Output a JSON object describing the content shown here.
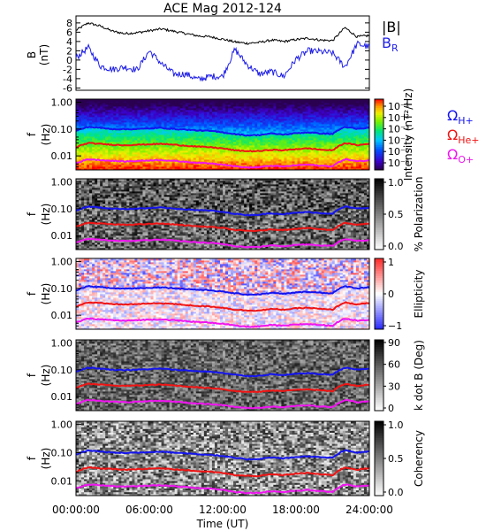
{
  "title": "ACE Mag 2012-124",
  "x_axis": {
    "label": "Time (UT)",
    "ticks": [
      "00:00:00",
      "06:00:00",
      "12:00:00",
      "18:00:00",
      "24:00:00"
    ]
  },
  "labels": {
    "panel_ylabel_f": "f",
    "panel_ylabel_hz": "(Hz)",
    "b_ylabel": "B",
    "b_unit": "(nT)",
    "legend_b": "|B|",
    "legend_br_main": "B",
    "legend_br_sub": "R",
    "omega": "Ω",
    "h_plus": "H+",
    "he_plus": "He+",
    "o_plus": "O+"
  },
  "colors": {
    "B_total": "#000000",
    "B_R": "#1e1ee6",
    "omega_H": "#1414f0",
    "omega_He": "#f01414",
    "omega_O": "#f014f0"
  },
  "chart_data": [
    {
      "type": "line",
      "ylabel": "B (nT)",
      "ylim": [
        -6.5,
        9.5
      ],
      "yticks": [
        "-6",
        "-4",
        "-2",
        "0",
        "2",
        "4",
        "6",
        "8"
      ],
      "x_unit": "hours UT",
      "xlim": [
        0,
        24
      ],
      "series": [
        {
          "name": "|B|",
          "x": [
            0,
            1,
            2,
            3,
            4,
            5,
            6,
            7,
            8,
            9,
            10,
            11,
            12,
            13,
            14,
            15,
            16,
            17,
            18,
            19,
            20,
            21,
            22,
            23,
            24
          ],
          "values": [
            6.4,
            8.0,
            7.3,
            6.2,
            5.7,
            5.9,
            6.3,
            6.7,
            6.2,
            5.7,
            5.2,
            5.0,
            4.5,
            3.9,
            3.6,
            3.8,
            4.3,
            4.0,
            4.4,
            4.7,
            4.3,
            4.2,
            7.0,
            5.0,
            5.3
          ]
        },
        {
          "name": "B_R",
          "x": [
            0,
            1,
            2,
            3,
            4,
            5,
            6,
            7,
            8,
            9,
            10,
            11,
            12,
            13,
            14,
            15,
            16,
            17,
            18,
            19,
            20,
            21,
            22,
            23,
            24
          ],
          "values": [
            0.5,
            2.7,
            -1.3,
            -2.0,
            -1.5,
            -2.1,
            2.0,
            -0.8,
            -3.0,
            -3.0,
            -4.2,
            -3.5,
            -3.5,
            2.3,
            -1.0,
            -3.0,
            -2.5,
            -3.5,
            0.2,
            2.0,
            1.8,
            1.5,
            -1.5,
            3.5,
            2.8
          ]
        }
      ]
    },
    {
      "type": "heatmap",
      "ylabel": "f (Hz)",
      "y_scale": "log",
      "ylim": [
        0.003,
        1.3
      ],
      "yticks": [
        "1.00",
        "0.10",
        "0.01"
      ],
      "colorbar_label": "Intensity (nT²/Hz)",
      "colorbar_ticks": [
        "10⁻¹",
        "10⁻²",
        "10⁻³",
        "10⁻⁴",
        "10⁻⁵",
        "10⁻⁶"
      ],
      "colorbar_range": [
        -6.5,
        -0.5
      ]
    },
    {
      "type": "heatmap",
      "ylabel": "f (Hz)",
      "y_scale": "log",
      "colorbar_label": "% Polarization",
      "colorbar_ticks": [
        "1.0",
        "0.5",
        "0.0"
      ],
      "colorbar_range": [
        0,
        1
      ]
    },
    {
      "type": "heatmap",
      "ylabel": "f (Hz)",
      "y_scale": "log",
      "colorbar_label": "Ellipticity",
      "colorbar_ticks": [
        "1",
        "0",
        "−1"
      ],
      "colorbar_range": [
        -1,
        1
      ]
    },
    {
      "type": "heatmap",
      "ylabel": "f (Hz)",
      "y_scale": "log",
      "colorbar_label": "k dot B (Deg)",
      "colorbar_ticks": [
        "90",
        "60",
        "30",
        "0"
      ],
      "colorbar_range": [
        0,
        90
      ]
    },
    {
      "type": "heatmap",
      "ylabel": "f (Hz)",
      "y_scale": "log",
      "colorbar_label": "Coherency",
      "colorbar_ticks": [
        "1.0",
        "0.5",
        "0.0"
      ],
      "colorbar_range": [
        0,
        1
      ]
    }
  ],
  "gyrofrequency_lines": {
    "x": [
      0,
      1,
      2,
      3,
      4,
      5,
      6,
      7,
      8,
      9,
      10,
      11,
      12,
      13,
      14,
      15,
      16,
      17,
      18,
      19,
      20,
      21,
      22,
      23,
      24
    ],
    "omega_H": [
      0.085,
      0.12,
      0.11,
      0.1,
      0.098,
      0.1,
      0.105,
      0.11,
      0.1,
      0.095,
      0.088,
      0.085,
      0.075,
      0.065,
      0.058,
      0.06,
      0.068,
      0.062,
      0.07,
      0.075,
      0.068,
      0.066,
      0.12,
      0.1,
      0.11
    ],
    "omega_He": [
      0.021,
      0.03,
      0.028,
      0.026,
      0.025,
      0.026,
      0.027,
      0.028,
      0.026,
      0.024,
      0.022,
      0.021,
      0.019,
      0.016,
      0.015,
      0.015,
      0.017,
      0.016,
      0.018,
      0.019,
      0.017,
      0.016,
      0.03,
      0.025,
      0.028
    ],
    "omega_O": [
      0.0053,
      0.0075,
      0.007,
      0.0065,
      0.0062,
      0.0065,
      0.0068,
      0.007,
      0.0065,
      0.006,
      0.0055,
      0.0053,
      0.0048,
      0.0041,
      0.0037,
      0.0038,
      0.0043,
      0.004,
      0.0045,
      0.0047,
      0.0043,
      0.0041,
      0.0075,
      0.0063,
      0.0068
    ]
  }
}
